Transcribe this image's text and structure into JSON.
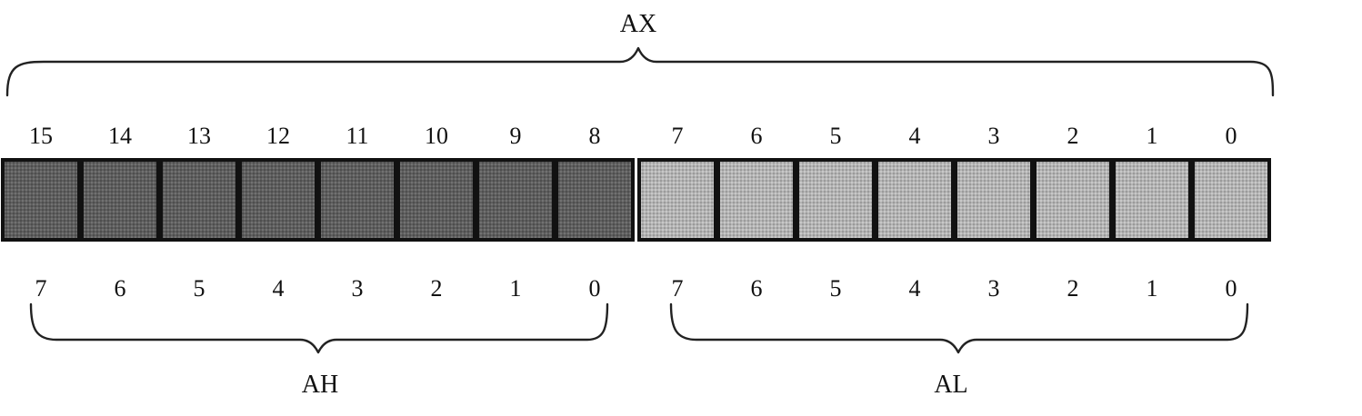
{
  "register": {
    "name": "AX",
    "high_name": "AH",
    "low_name": "AL"
  },
  "bits": {
    "ax": [
      "15",
      "14",
      "13",
      "12",
      "11",
      "10",
      "9",
      "8",
      "7",
      "6",
      "5",
      "4",
      "3",
      "2",
      "1",
      "0"
    ],
    "ah": [
      "7",
      "6",
      "5",
      "4",
      "3",
      "2",
      "1",
      "0"
    ],
    "al": [
      "7",
      "6",
      "5",
      "4",
      "3",
      "2",
      "1",
      "0"
    ]
  },
  "colors": {
    "high_byte_fill": "#5e5e5e",
    "low_byte_fill": "#b4b4b4",
    "outline": "#111111"
  }
}
